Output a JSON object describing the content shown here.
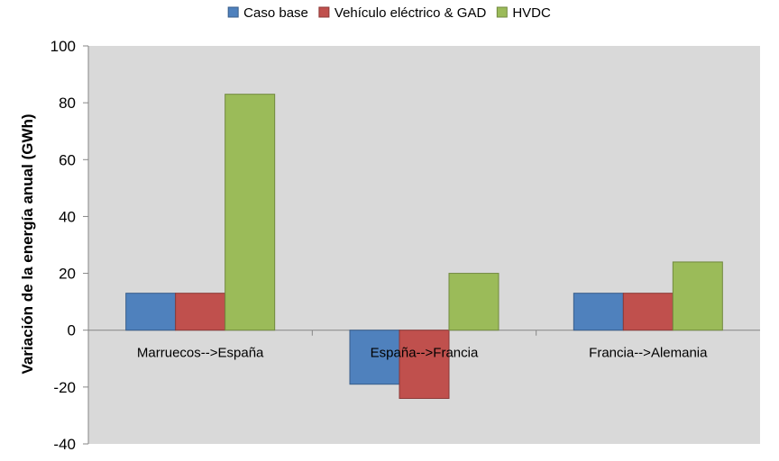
{
  "chart_data": {
    "type": "bar",
    "categories": [
      "Marruecos-->España",
      "España-->Francia",
      "Francia-->Alemania"
    ],
    "series": [
      {
        "name": "Caso base",
        "values": [
          13,
          -19,
          13
        ],
        "color": "#4F81BD",
        "stroke": "#385D8A"
      },
      {
        "name": "Vehículo eléctrico & GAD",
        "values": [
          13,
          -24,
          13
        ],
        "color": "#C0504D",
        "stroke": "#8C3836"
      },
      {
        "name": "HVDC",
        "values": [
          83,
          20,
          24
        ],
        "color": "#9BBB59",
        "stroke": "#71893F"
      }
    ],
    "title": "",
    "xlabel": "",
    "ylabel": "Variación de la energía anual (GWh)",
    "ylim": [
      -40,
      100
    ],
    "yticks": [
      "100",
      "80",
      "60",
      "40",
      "20",
      "0",
      "-20",
      "-40"
    ],
    "ytick_values": [
      100,
      80,
      60,
      40,
      20,
      0,
      -20,
      -40
    ],
    "grid": false,
    "legend": "top",
    "plot_background": "#D9D9D9"
  }
}
